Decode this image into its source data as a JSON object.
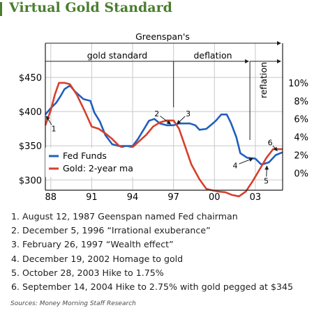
{
  "title": "Virtual Gold Standard",
  "source": "Sources: Money Morning Staff Research",
  "colors": {
    "fed_funds": "#1f5fbf",
    "gold": "#d6402c",
    "title": "#4a7d2e",
    "grid": "#c8c8c8"
  },
  "notes": [
    "1. August 12, 1987 Geenspan named Fed chairman",
    "2. December 5, 1996 “Irrational exuberance”",
    "3. February 26, 1997 “Wealth effect”",
    "4. December 19, 2002 Homage to gold",
    "5. October 28, 2003 Hike to 1.75%",
    "6. September 14, 2004 Hike to 2.75% with gold pegged at $345"
  ],
  "chart_data": {
    "type": "line",
    "title": "Virtual Gold Standard",
    "x_ticks": [
      {
        "x": 1988,
        "label": "88"
      },
      {
        "x": 1991,
        "label": "91"
      },
      {
        "x": 1994,
        "label": "94"
      },
      {
        "x": 1997,
        "label": "97"
      },
      {
        "x": 2000,
        "label": "00"
      },
      {
        "x": 2003,
        "label": "03"
      }
    ],
    "xlim": [
      1987.6,
      2005.0
    ],
    "y_left": {
      "ticks": [
        "$450",
        "$400",
        "$350",
        "$300"
      ],
      "values": [
        450,
        400,
        350,
        300
      ],
      "lim": [
        285,
        500
      ]
    },
    "y_right": {
      "ticks": [
        "10%",
        "8%",
        "6%",
        "4%",
        "2%",
        "0%"
      ],
      "values": [
        10,
        8,
        6,
        4,
        2,
        0
      ],
      "lim": [
        -1.9,
        14.4
      ]
    },
    "grid": true,
    "legend": {
      "position": "bottom-left",
      "entries": [
        "Fed Funds",
        "Gold: 2-year ma"
      ]
    },
    "series": [
      {
        "name": "Fed Funds",
        "axis": "right",
        "x": [
          1987.6,
          1988.0,
          1988.4,
          1988.7,
          1989.0,
          1989.4,
          1989.8,
          1990.4,
          1990.9,
          1991.2,
          1991.6,
          1992.0,
          1992.5,
          1993.0,
          1993.5,
          1994.0,
          1994.4,
          1994.8,
          1995.2,
          1995.6,
          1996.0,
          1996.5,
          1997.0,
          1997.4,
          1997.8,
          1998.2,
          1998.6,
          1998.9,
          1999.4,
          1999.8,
          2000.1,
          2000.5,
          2000.9,
          2001.2,
          2001.6,
          2001.9,
          2002.4,
          2003.0,
          2003.4,
          2003.6,
          2004.0,
          2004.5,
          2005.0
        ],
        "values": [
          6.5,
          7.2,
          7.8,
          8.5,
          9.3,
          9.7,
          9.0,
          8.2,
          8.0,
          6.7,
          5.7,
          4.2,
          3.2,
          3.0,
          3.0,
          3.0,
          3.8,
          4.8,
          5.8,
          6.0,
          5.5,
          5.3,
          5.3,
          5.5,
          5.5,
          5.5,
          5.3,
          4.8,
          4.9,
          5.4,
          5.8,
          6.5,
          6.5,
          5.6,
          4.0,
          2.2,
          1.7,
          1.6,
          1.0,
          1.0,
          1.2,
          2.0,
          2.3
        ]
      },
      {
        "name": "Gold: 2-year ma",
        "axis": "left",
        "x": [
          1987.6,
          1988.0,
          1988.3,
          1988.6,
          1989.0,
          1989.4,
          1989.9,
          1990.5,
          1991.0,
          1991.5,
          1992.0,
          1992.5,
          1993.0,
          1993.5,
          1994.0,
          1994.5,
          1995.0,
          1995.5,
          1996.0,
          1996.5,
          1997.0,
          1997.4,
          1997.8,
          1998.3,
          1998.9,
          1999.4,
          1999.8,
          2000.3,
          2000.8,
          2001.3,
          2001.8,
          2002.3,
          2002.8,
          2003.3,
          2003.8,
          2004.3,
          2004.7,
          2005.0
        ],
        "values": [
          380,
          402,
          425,
          442,
          442,
          440,
          425,
          400,
          378,
          375,
          368,
          360,
          350,
          345,
          348,
          357,
          366,
          378,
          384,
          387,
          387,
          375,
          352,
          323,
          301,
          287,
          285,
          283,
          282,
          278,
          276,
          283,
          298,
          315,
          332,
          345,
          345,
          345
        ]
      }
    ],
    "annotations": [
      {
        "label": "Greenspan's",
        "type": "span",
        "from": 1987.6,
        "to": 2005.0
      },
      {
        "label": "gold standard",
        "type": "span",
        "from": 1987.6,
        "to": 1997.0
      },
      {
        "label": "deflation",
        "type": "span",
        "from": 1997.0,
        "to": 2002.6
      },
      {
        "label": "reflation",
        "type": "span",
        "from": 2002.6,
        "to": 2005.0
      },
      {
        "label": "1",
        "x": 1987.6,
        "y": 6.5,
        "axis": "right"
      },
      {
        "label": "2",
        "x": 1996.9,
        "y": 5.3,
        "axis": "right"
      },
      {
        "label": "3",
        "x": 1997.15,
        "y": 5.3,
        "axis": "right"
      },
      {
        "label": "4",
        "x": 2002.95,
        "y": 1.7,
        "axis": "right"
      },
      {
        "label": "5",
        "x": 2003.85,
        "y": 1.0,
        "axis": "right"
      },
      {
        "label": "6",
        "x": 2004.7,
        "y": 2.3,
        "axis": "right"
      }
    ]
  }
}
